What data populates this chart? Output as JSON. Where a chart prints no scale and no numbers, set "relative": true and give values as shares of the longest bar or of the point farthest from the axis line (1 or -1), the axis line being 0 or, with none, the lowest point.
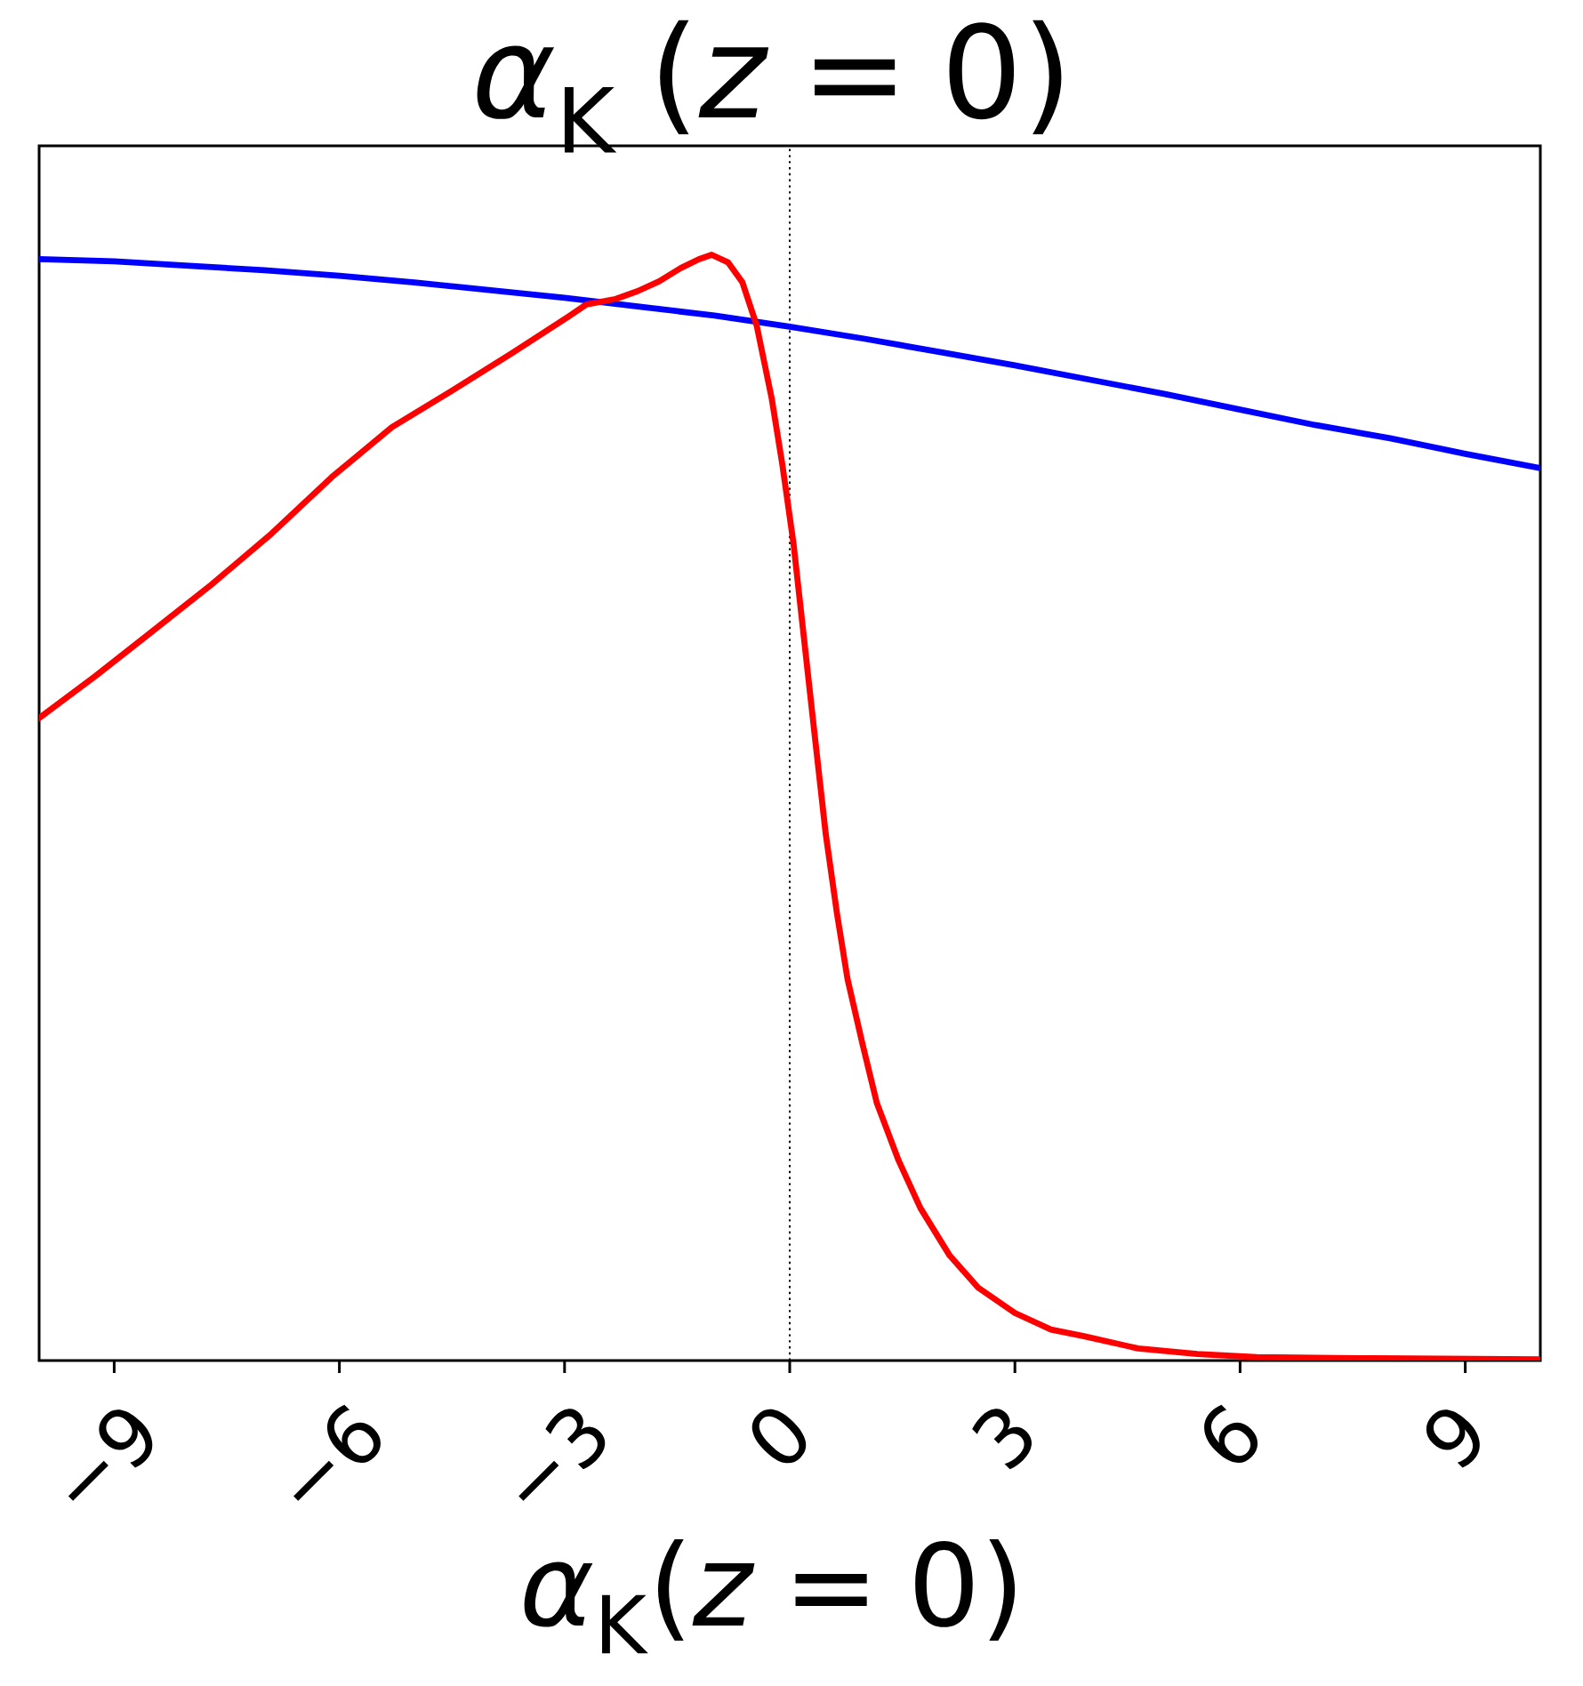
{
  "chart_data": {
    "type": "line",
    "title": "*α*$_{K}$ (*z* = 0)",
    "xlabel": "*α*$_{K}$(*z* = 0)",
    "relative": true,
    "xlim": [
      -10,
      10
    ],
    "xticks": [
      {
        "value": -9,
        "label": "−9"
      },
      {
        "value": -6,
        "label": "−6"
      },
      {
        "value": -3,
        "label": "−3"
      },
      0,
      3,
      6,
      9
    ],
    "ref_lines": [
      {
        "axis": "x",
        "value": 0,
        "color": "#000000",
        "line_style": "dotted"
      }
    ],
    "series": [
      {
        "color": "#0000ff",
        "x": [
          -10,
          -9,
          -8,
          -7,
          -6,
          -5,
          -4,
          -3,
          -2,
          -1,
          0,
          1,
          2,
          3,
          4,
          5,
          6,
          7,
          8,
          9,
          10
        ],
        "values": [
          0.996,
          0.994,
          0.99,
          0.986,
          0.981,
          0.975,
          0.968,
          0.961,
          0.953,
          0.945,
          0.935,
          0.924,
          0.912,
          0.9,
          0.887,
          0.874,
          0.86,
          0.846,
          0.834,
          0.82,
          0.807
        ]
      },
      {
        "color": "#ff0000",
        "x": [
          -10,
          -9.25,
          -8.5,
          -7.7,
          -6.9,
          -6.1,
          -5.3,
          -4.5,
          -3.7,
          -2.95,
          -2.71,
          -2.32,
          -2.03,
          -1.74,
          -1.45,
          -1.21,
          -1.04,
          -0.82,
          -0.63,
          -0.44,
          -0.24,
          -0.1,
          0.05,
          0.19,
          0.34,
          0.48,
          0.63,
          0.77,
          0.97,
          1.16,
          1.45,
          1.74,
          2.13,
          2.51,
          3.0,
          3.48,
          3.92,
          4.64,
          5.43,
          6.22,
          7.8,
          10
        ],
        "values": [
          0.581,
          0.619,
          0.659,
          0.702,
          0.748,
          0.799,
          0.844,
          0.877,
          0.911,
          0.944,
          0.955,
          0.96,
          0.967,
          0.976,
          0.988,
          0.996,
          1.0,
          0.993,
          0.975,
          0.936,
          0.87,
          0.811,
          0.739,
          0.653,
          0.561,
          0.476,
          0.404,
          0.345,
          0.286,
          0.233,
          0.181,
          0.138,
          0.095,
          0.066,
          0.043,
          0.028,
          0.022,
          0.011,
          0.006,
          0.003,
          0.002,
          0.001
        ]
      }
    ]
  }
}
